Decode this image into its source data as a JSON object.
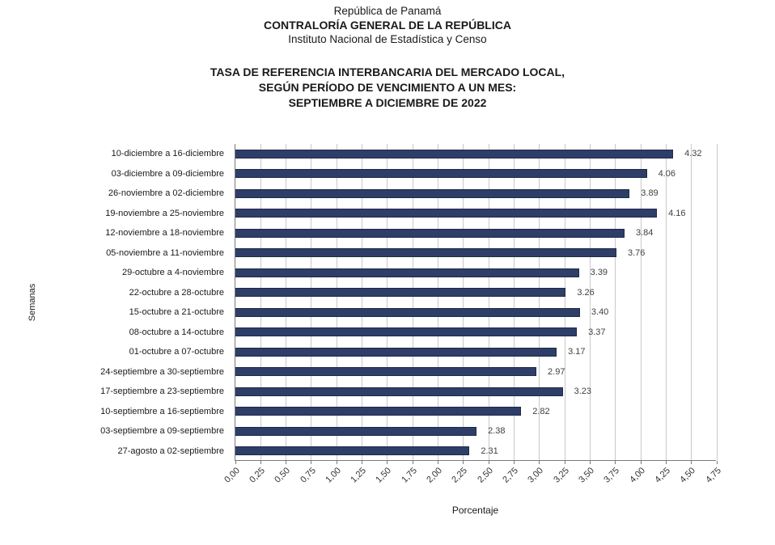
{
  "header": {
    "line1": "República de Panamá",
    "line2": "CONTRALORÍA GENERAL DE LA REPÚBLICA",
    "line3": "Instituto Nacional de Estadística y Censo"
  },
  "title": {
    "line1": "TASA DE REFERENCIA INTERBANCARIA DEL MERCADO LOCAL,",
    "line2": "SEGÚN PERÍODO DE VENCIMIENTO A UN MES:",
    "line3": "SEPTIEMBRE A DICIEMBRE DE 2022"
  },
  "chart_data": {
    "type": "bar",
    "orientation": "horizontal",
    "xlabel": "Porcentaje",
    "ylabel": "Semanas",
    "xlim": [
      0,
      4.75
    ],
    "tick_step": 0.25,
    "grid": true,
    "legend": "none",
    "bar_color": "#2e3e68",
    "x_tick_labels": [
      "0,00",
      "0,25",
      "0,50",
      "0,75",
      "1,00",
      "1,25",
      "1,50",
      "1,75",
      "2,00",
      "2,25",
      "2,50",
      "2,75",
      "3,00",
      "3,25",
      "3,50",
      "3,75",
      "4,00",
      "4,25",
      "4,50",
      "4,75"
    ],
    "categories": [
      "10-diciembre a 16-diciembre",
      "03-diciembre a 09-diciembre",
      "26-noviembre a 02-diciembre",
      "19-noviembre a 25-noviembre",
      "12-noviembre a 18-noviembre",
      "05-noviembre a 11-noviembre",
      "29-octubre a 4-noviembre",
      "22-octubre a 28-octubre",
      "15-octubre a 21-octubre",
      "08-octubre a 14-octubre",
      "01-octubre a 07-octubre",
      "24-septiembre a 30-septiembre",
      "17-septiembre a 23-septiembre",
      "10-septiembre a 16-septiembre",
      "03-septiembre a 09-septiembre",
      "27-agosto a 02-septiembre"
    ],
    "values": [
      4.32,
      4.06,
      3.89,
      4.16,
      3.84,
      3.76,
      3.39,
      3.26,
      3.4,
      3.37,
      3.17,
      2.97,
      3.23,
      2.82,
      2.38,
      2.31
    ],
    "value_labels": [
      "4.32",
      "4.06",
      "3.89",
      "4.16",
      "3.84",
      "3.76",
      "3.39",
      "3.26",
      "3.40",
      "3.37",
      "3.17",
      "2.97",
      "3.23",
      "2.82",
      "2.38",
      "2.31"
    ]
  }
}
